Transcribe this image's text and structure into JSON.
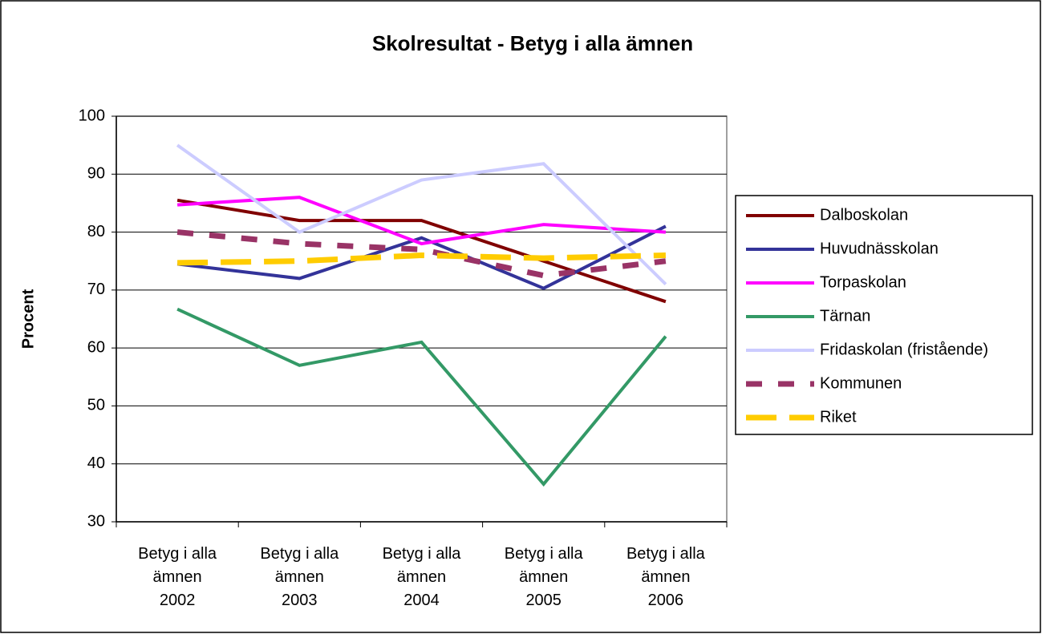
{
  "chart_data": {
    "type": "line",
    "title": "Skolresultat - Betyg i alla ämnen",
    "ylabel": "Procent",
    "categories": [
      "Betyg i alla ämnen 2002",
      "Betyg i alla ämnen 2003",
      "Betyg i alla ämnen 2004",
      "Betyg i alla ämnen 2005",
      "Betyg i alla ämnen 2006"
    ],
    "series": [
      {
        "name": "Dalboskolan",
        "color": "#800000",
        "style": "solid",
        "values": [
          85.5,
          82,
          82,
          75,
          68
        ]
      },
      {
        "name": "Huvudnässkolan",
        "color": "#333399",
        "style": "solid",
        "values": [
          74.5,
          72,
          79,
          70.3,
          81
        ]
      },
      {
        "name": "Torpaskolan",
        "color": "#ff00ff",
        "style": "solid",
        "values": [
          84.7,
          86,
          78,
          81.3,
          80
        ]
      },
      {
        "name": "Tärnan",
        "color": "#339966",
        "style": "solid",
        "values": [
          66.7,
          57,
          61,
          36.5,
          62
        ]
      },
      {
        "name": "Fridaskolan (fristående)",
        "color": "#ccccff",
        "style": "solid",
        "values": [
          95,
          80,
          89,
          91.8,
          71
        ]
      },
      {
        "name": "Kommunen",
        "color": "#993366",
        "style": "dashed",
        "values": [
          80,
          78,
          77,
          72.5,
          75
        ]
      },
      {
        "name": "Riket",
        "color": "#ffcc00",
        "style": "longdash",
        "values": [
          74.7,
          75,
          76,
          75.5,
          76
        ]
      }
    ],
    "ylim": [
      30,
      100
    ],
    "yticks": [
      30,
      40,
      50,
      60,
      70,
      80,
      90,
      100
    ],
    "grid": true,
    "legend": "right"
  }
}
